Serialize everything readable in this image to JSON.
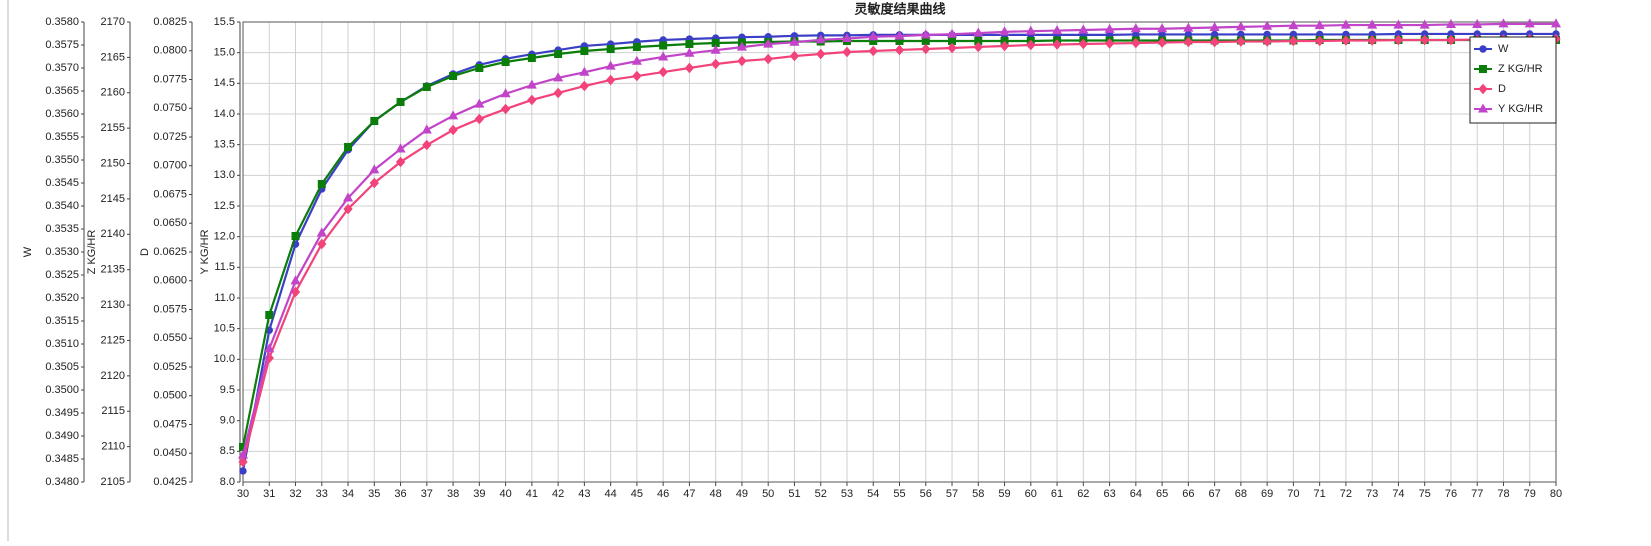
{
  "chart_data": {
    "type": "line",
    "title": "灵敏度结果曲线",
    "x": [
      30,
      31,
      32,
      33,
      34,
      35,
      36,
      37,
      38,
      39,
      40,
      41,
      42,
      43,
      44,
      45,
      46,
      47,
      48,
      49,
      50,
      51,
      52,
      53,
      54,
      55,
      56,
      57,
      58,
      59,
      60,
      61,
      62,
      63,
      64,
      65,
      66,
      67,
      68,
      69,
      70,
      71,
      72,
      73,
      74,
      75,
      76,
      77,
      78,
      79,
      80
    ],
    "xlim": [
      30,
      80
    ],
    "xticks": [
      30,
      31,
      32,
      33,
      34,
      35,
      36,
      37,
      38,
      39,
      40,
      41,
      42,
      43,
      44,
      45,
      46,
      47,
      48,
      49,
      50,
      51,
      52,
      53,
      54,
      55,
      56,
      57,
      58,
      59,
      60,
      61,
      62,
      63,
      64,
      65,
      66,
      67,
      68,
      69,
      70,
      71,
      72,
      73,
      74,
      75,
      76,
      77,
      78,
      79,
      80
    ],
    "grid": true,
    "legend": "upper right",
    "axes": [
      {
        "label": "W",
        "lim": [
          0.348,
          0.358
        ],
        "ticks": [
          {
            "value": 0.348,
            "label": "0.3480"
          },
          0.3485,
          {
            "value": 0.349,
            "label": "0.3490"
          },
          0.3495,
          {
            "value": 0.35,
            "label": "0.3500"
          },
          0.3505,
          {
            "value": 0.351,
            "label": "0.3510"
          },
          0.3515,
          {
            "value": 0.352,
            "label": "0.3520"
          },
          0.3525,
          {
            "value": 0.353,
            "label": "0.3530"
          },
          0.3535,
          {
            "value": 0.354,
            "label": "0.3540"
          },
          0.3545,
          {
            "value": 0.355,
            "label": "0.3550"
          },
          0.3555,
          {
            "value": 0.356,
            "label": "0.3560"
          },
          0.3565,
          {
            "value": 0.357,
            "label": "0.3570"
          },
          0.3575,
          {
            "value": 0.358,
            "label": "0.3580"
          }
        ]
      },
      {
        "label": "Z KG/HR",
        "lim": [
          2105,
          2170
        ],
        "ticks": [
          2105,
          2110,
          2115,
          2120,
          2125,
          2130,
          2135,
          2140,
          2145,
          2150,
          2155,
          2160,
          2165,
          2170
        ]
      },
      {
        "label": "D",
        "lim": [
          0.0425,
          0.0825
        ],
        "ticks": [
          0.0425,
          {
            "value": 0.045,
            "label": "0.0450"
          },
          0.0475,
          {
            "value": 0.05,
            "label": "0.0500"
          },
          0.0525,
          {
            "value": 0.055,
            "label": "0.0550"
          },
          0.0575,
          {
            "value": 0.06,
            "label": "0.0600"
          },
          0.0625,
          {
            "value": 0.065,
            "label": "0.0650"
          },
          0.0675,
          {
            "value": 0.07,
            "label": "0.0700"
          },
          0.0725,
          {
            "value": 0.075,
            "label": "0.0750"
          },
          0.0775,
          {
            "value": 0.08,
            "label": "0.0800"
          },
          0.0825
        ]
      },
      {
        "label": "Y KG/HR",
        "lim": [
          8,
          15.5
        ],
        "ticks": [
          {
            "value": 8,
            "label": "8.0"
          },
          8.5,
          {
            "value": 9,
            "label": "9.0"
          },
          9.5,
          {
            "value": 10,
            "label": "10.0"
          },
          10.5,
          {
            "value": 11,
            "label": "11.0"
          },
          11.5,
          {
            "value": 12,
            "label": "12.0"
          },
          12.5,
          {
            "value": 13,
            "label": "13.0"
          },
          13.5,
          {
            "value": 14,
            "label": "14.0"
          },
          14.5,
          {
            "value": 15,
            "label": "15.0"
          },
          15.5
        ]
      }
    ],
    "series": [
      {
        "name": "W",
        "color": "#3b3fc6",
        "axis": 0,
        "marker": "circle",
        "values": [
          0.34824,
          0.3513,
          0.35317,
          0.35437,
          0.35522,
          0.35585,
          0.35626,
          0.35661,
          0.35687,
          0.35707,
          0.3572,
          0.3573,
          0.35739,
          0.35748,
          0.35752,
          0.35757,
          0.35761,
          0.35763,
          0.35765,
          0.35767,
          0.35768,
          0.3577,
          0.35771,
          0.35771,
          0.35772,
          0.35772,
          0.35772,
          0.35772,
          0.35772,
          0.35772,
          0.35772,
          0.35772,
          0.35772,
          0.35772,
          0.35773,
          0.35773,
          0.35773,
          0.35773,
          0.35773,
          0.35773,
          0.35773,
          0.35773,
          0.35773,
          0.35773,
          0.35774,
          0.35774,
          0.35774,
          0.35774,
          0.35774,
          0.35774,
          0.35774
        ]
      },
      {
        "name": "Z KG/HR",
        "color": "#0a7d0a",
        "axis": 1,
        "marker": "square",
        "values": [
          2109.95,
          2128.6,
          2139.76,
          2147.11,
          2152.34,
          2156.01,
          2158.7,
          2160.82,
          2162.37,
          2163.5,
          2164.35,
          2164.91,
          2165.48,
          2165.9,
          2166.18,
          2166.47,
          2166.68,
          2166.89,
          2167.03,
          2167.1,
          2167.17,
          2167.24,
          2167.24,
          2167.32,
          2167.32,
          2167.32,
          2167.32,
          2167.32,
          2167.32,
          2167.32,
          2167.32,
          2167.39,
          2167.39,
          2167.39,
          2167.39,
          2167.39,
          2167.39,
          2167.39,
          2167.39,
          2167.39,
          2167.39,
          2167.46,
          2167.46,
          2167.46,
          2167.46,
          2167.46,
          2167.46,
          2167.46,
          2167.46,
          2167.46,
          2167.46
        ]
      },
      {
        "name": "D",
        "color": "#f2437a",
        "axis": 2,
        "marker": "diamond",
        "values": [
          0.04424,
          0.05328,
          0.05902,
          0.0632,
          0.06624,
          0.0685,
          0.07033,
          0.0718,
          0.07311,
          0.07407,
          0.07493,
          0.07572,
          0.07633,
          0.07693,
          0.07746,
          0.0778,
          0.07815,
          0.0785,
          0.07885,
          0.07911,
          0.07928,
          0.07954,
          0.07972,
          0.07989,
          0.07998,
          0.08007,
          0.08015,
          0.08024,
          0.08033,
          0.08041,
          0.0805,
          0.08054,
          0.08059,
          0.08063,
          0.08067,
          0.08072,
          0.08076,
          0.08076,
          0.0808,
          0.0808,
          0.08085,
          0.08085,
          0.08089,
          0.08089,
          0.08093,
          0.08093,
          0.08093,
          0.08098,
          0.08098,
          0.08102,
          0.08102
        ]
      },
      {
        "name": "Y KG/HR",
        "color": "#c144c9",
        "axis": 3,
        "marker": "triangle",
        "values": [
          8.44,
          10.17,
          11.28,
          12.06,
          12.63,
          13.09,
          13.43,
          13.74,
          13.97,
          14.16,
          14.33,
          14.47,
          14.59,
          14.68,
          14.78,
          14.86,
          14.93,
          14.99,
          15.04,
          15.09,
          15.14,
          15.17,
          15.21,
          15.23,
          15.26,
          15.27,
          15.29,
          15.3,
          15.32,
          15.34,
          15.35,
          15.36,
          15.37,
          15.38,
          15.39,
          15.39,
          15.4,
          15.41,
          15.42,
          15.43,
          15.44,
          15.44,
          15.45,
          15.45,
          15.45,
          15.45,
          15.46,
          15.46,
          15.47,
          15.47,
          15.47
        ]
      }
    ]
  }
}
